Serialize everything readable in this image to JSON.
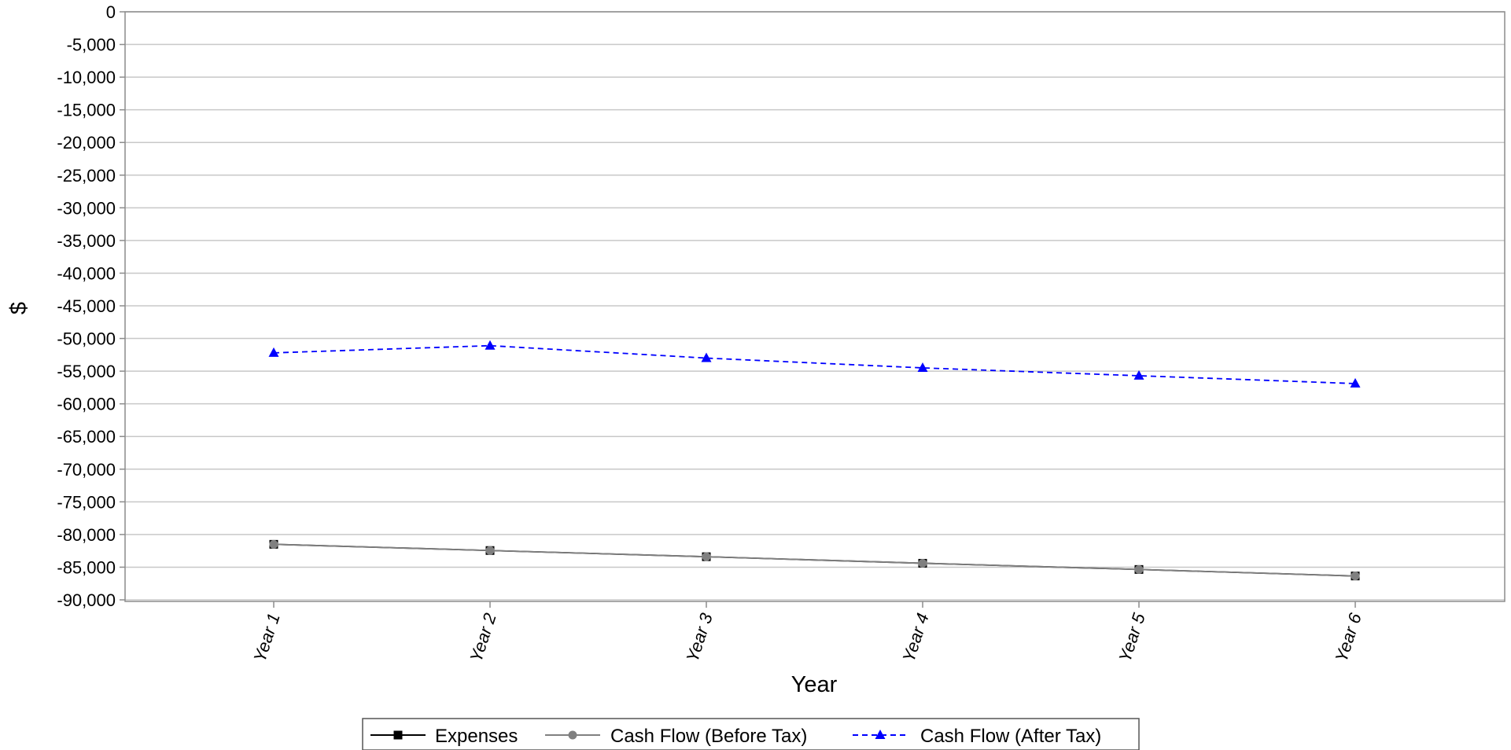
{
  "chart_data": {
    "type": "line",
    "title": "",
    "xlabel": "Year",
    "ylabel": "$",
    "categories": [
      "Year 1",
      "Year 2",
      "Year 3",
      "Year 4",
      "Year 5",
      "Year 6"
    ],
    "ylim": [
      -90000,
      0
    ],
    "yticks": [
      0,
      -5000,
      -10000,
      -15000,
      -20000,
      -25000,
      -30000,
      -35000,
      -40000,
      -45000,
      -50000,
      -55000,
      -60000,
      -65000,
      -70000,
      -75000,
      -80000,
      -85000,
      -90000
    ],
    "ytick_labels": [
      "0",
      "-5,000",
      "-10,000",
      "-15,000",
      "-20,000",
      "-25,000",
      "-30,000",
      "-35,000",
      "-40,000",
      "-45,000",
      "-50,000",
      "-55,000",
      "-60,000",
      "-65,000",
      "-70,000",
      "-75,000",
      "-80,000",
      "-85,000",
      "-90,000"
    ],
    "grid": true,
    "legend_position": "bottom",
    "series": [
      {
        "name": "Expenses",
        "values": [
          -81500,
          -82450,
          -83400,
          -84400,
          -85350,
          -86350
        ],
        "color": "#000000",
        "marker": "square",
        "line_style": "solid"
      },
      {
        "name": "Cash Flow (Before Tax)",
        "values": [
          -81500,
          -82450,
          -83400,
          -84400,
          -85350,
          -86350
        ],
        "color": "#808080",
        "marker": "circle",
        "line_style": "solid"
      },
      {
        "name": "Cash Flow (After Tax)",
        "values": [
          -52200,
          -51100,
          -53000,
          -54500,
          -55700,
          -56900
        ],
        "color": "#0000ff",
        "marker": "triangle",
        "line_style": "dashed"
      }
    ]
  }
}
